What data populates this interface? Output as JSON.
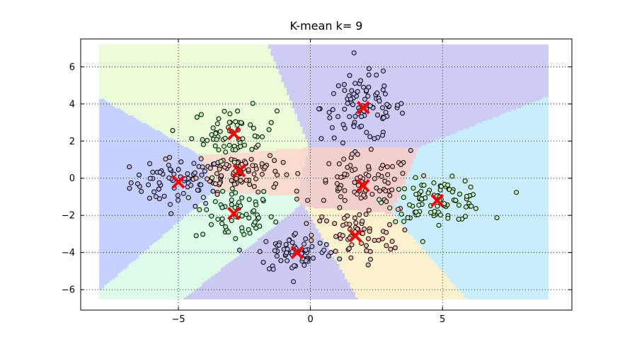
{
  "chart_data": {
    "type": "scatter",
    "title": "K-mean k= 9",
    "xlabel": "",
    "ylabel": "",
    "xlim": [
      -8.7,
      9.9
    ],
    "ylim": [
      -7.1,
      7.5
    ],
    "grid": true,
    "x_ticks": [
      -5,
      0,
      5
    ],
    "y_ticks": [
      -6,
      -4,
      -2,
      0,
      2,
      4,
      6
    ],
    "x_tick_labels": [
      "−5",
      "0",
      "5"
    ],
    "y_tick_labels": [
      "−6",
      "−4",
      "−2",
      "0",
      "2",
      "4",
      "6"
    ],
    "region_extent": {
      "x": [
        -8.0,
        9.0
      ],
      "y": [
        -6.5,
        7.2
      ]
    },
    "clusters": [
      {
        "center": [
          -5.0,
          -0.2
        ],
        "spread": [
          0.9,
          0.65
        ],
        "count": 70,
        "fill": "#b8b8f5",
        "region": "#c6d1ff"
      },
      {
        "center": [
          -2.9,
          -1.9
        ],
        "spread": [
          0.75,
          0.8
        ],
        "count": 65,
        "fill": "#a8f5b8",
        "region": "#dcfbe9"
      },
      {
        "center": [
          -2.7,
          0.4
        ],
        "spread": [
          0.8,
          0.55
        ],
        "count": 90,
        "fill": "#f2b9b0",
        "region": "#f8dccd"
      },
      {
        "center": [
          -2.9,
          2.4
        ],
        "spread": [
          0.8,
          0.7
        ],
        "count": 60,
        "fill": "#b8f5b0",
        "region": "#ebfbd8"
      },
      {
        "center": [
          2.0,
          3.8
        ],
        "spread": [
          0.8,
          0.9
        ],
        "count": 95,
        "fill": "#b8b8f5",
        "region": "#cdccf4"
      },
      {
        "center": [
          2.0,
          -0.4
        ],
        "spread": [
          0.95,
          0.8
        ],
        "count": 80,
        "fill": "#f2b9b0",
        "region": "#f2cfcf"
      },
      {
        "center": [
          4.8,
          -1.2
        ],
        "spread": [
          0.95,
          0.55
        ],
        "count": 95,
        "fill": "#b8f5b0",
        "region": "#c9eefb"
      },
      {
        "center": [
          1.7,
          -3.1
        ],
        "spread": [
          0.8,
          0.7
        ],
        "count": 60,
        "fill": "#f2b9b0",
        "region": "#fbf1cc"
      },
      {
        "center": [
          -0.5,
          -4.0
        ],
        "spread": [
          0.75,
          0.55
        ],
        "count": 70,
        "fill": "#b8b8f5",
        "region": "#cbcaf2"
      }
    ]
  }
}
